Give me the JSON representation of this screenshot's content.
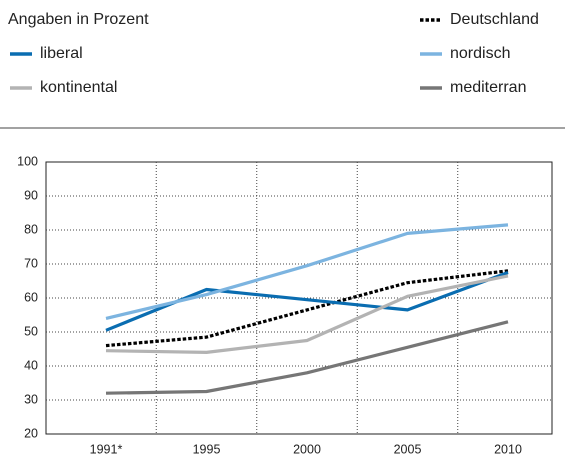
{
  "chart_data": {
    "type": "line",
    "subtitle": "Angaben in Prozent",
    "categories": [
      "1991*",
      "1995",
      "2000",
      "2005",
      "2010"
    ],
    "series": [
      {
        "name": "Deutschland",
        "color": "#000000",
        "dash": "dotted",
        "values": [
          46,
          48.5,
          56.5,
          64.5,
          68
        ]
      },
      {
        "name": "liberal",
        "color": "#0a6db1",
        "values": [
          50.5,
          62.5,
          59.5,
          56.5,
          67.5
        ]
      },
      {
        "name": "nordisch",
        "color": "#7cb4e0",
        "values": [
          54,
          61,
          69.5,
          79,
          81.5
        ]
      },
      {
        "name": "kontinental",
        "color": "#b3b3b3",
        "values": [
          44.5,
          44,
          47.5,
          60.5,
          66.5
        ]
      },
      {
        "name": "mediterran",
        "color": "#767676",
        "values": [
          32,
          32.5,
          38,
          45.5,
          53
        ]
      }
    ],
    "ylim": [
      20,
      100
    ],
    "yticks": [
      20,
      30,
      40,
      50,
      60,
      70,
      80,
      90,
      100
    ],
    "grid": true
  }
}
